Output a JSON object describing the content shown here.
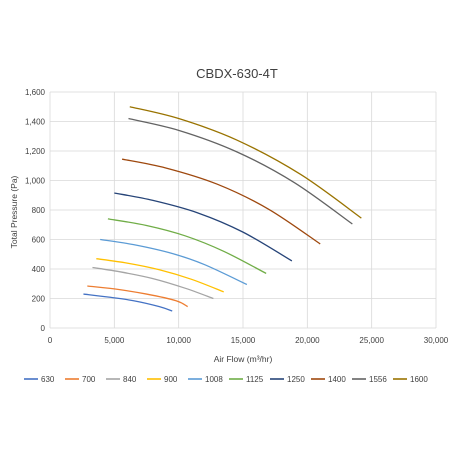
{
  "chart_data": {
    "type": "line",
    "title": "CBDX-630-4T",
    "xlabel": "Air Flow (m³/hr)",
    "ylabel": "Total Pressure (Pa)",
    "xlim": [
      0,
      30000
    ],
    "ylim": [
      0,
      1600
    ],
    "x_ticks": [
      "0",
      "5,000",
      "10,000",
      "15,000",
      "20,000",
      "25,000",
      "30,000"
    ],
    "y_ticks": [
      "0",
      "200",
      "400",
      "600",
      "800",
      "1,000",
      "1,200",
      "1,400",
      "1,600"
    ],
    "grid": true,
    "legend_position": "bottom",
    "series": [
      {
        "name": "630",
        "color": "#4472c4",
        "points": [
          [
            2600,
            230
          ],
          [
            4500,
            210
          ],
          [
            6500,
            185
          ],
          [
            8500,
            145
          ],
          [
            9500,
            115
          ]
        ]
      },
      {
        "name": "700",
        "color": "#ed7d31",
        "points": [
          [
            2900,
            285
          ],
          [
            5000,
            265
          ],
          [
            7500,
            230
          ],
          [
            9800,
            185
          ],
          [
            10700,
            145
          ]
        ]
      },
      {
        "name": "840",
        "color": "#a5a5a5",
        "points": [
          [
            3300,
            410
          ],
          [
            5500,
            380
          ],
          [
            8000,
            335
          ],
          [
            10500,
            270
          ],
          [
            12700,
            200
          ]
        ]
      },
      {
        "name": "900",
        "color": "#ffc000",
        "points": [
          [
            3600,
            470
          ],
          [
            6000,
            440
          ],
          [
            8500,
            395
          ],
          [
            11000,
            330
          ],
          [
            13500,
            245
          ]
        ]
      },
      {
        "name": "1008",
        "color": "#5b9bd5",
        "points": [
          [
            3900,
            600
          ],
          [
            6500,
            565
          ],
          [
            9500,
            505
          ],
          [
            12000,
            430
          ],
          [
            15300,
            295
          ]
        ]
      },
      {
        "name": "1125",
        "color": "#70ad47",
        "points": [
          [
            4500,
            740
          ],
          [
            7500,
            695
          ],
          [
            10500,
            625
          ],
          [
            13500,
            520
          ],
          [
            16800,
            370
          ]
        ]
      },
      {
        "name": "1250",
        "color": "#264478",
        "points": [
          [
            5000,
            915
          ],
          [
            8000,
            865
          ],
          [
            11500,
            780
          ],
          [
            15000,
            650
          ],
          [
            18800,
            455
          ]
        ]
      },
      {
        "name": "1400",
        "color": "#9e480e",
        "points": [
          [
            5600,
            1145
          ],
          [
            9000,
            1085
          ],
          [
            13000,
            975
          ],
          [
            17000,
            805
          ],
          [
            21000,
            570
          ]
        ]
      },
      {
        "name": "1556",
        "color": "#636363",
        "points": [
          [
            6100,
            1420
          ],
          [
            10000,
            1340
          ],
          [
            14500,
            1195
          ],
          [
            19000,
            985
          ],
          [
            23500,
            705
          ]
        ]
      },
      {
        "name": "1600",
        "color": "#997300",
        "points": [
          [
            6200,
            1500
          ],
          [
            10000,
            1420
          ],
          [
            14500,
            1275
          ],
          [
            19500,
            1040
          ],
          [
            24200,
            745
          ]
        ]
      }
    ]
  }
}
